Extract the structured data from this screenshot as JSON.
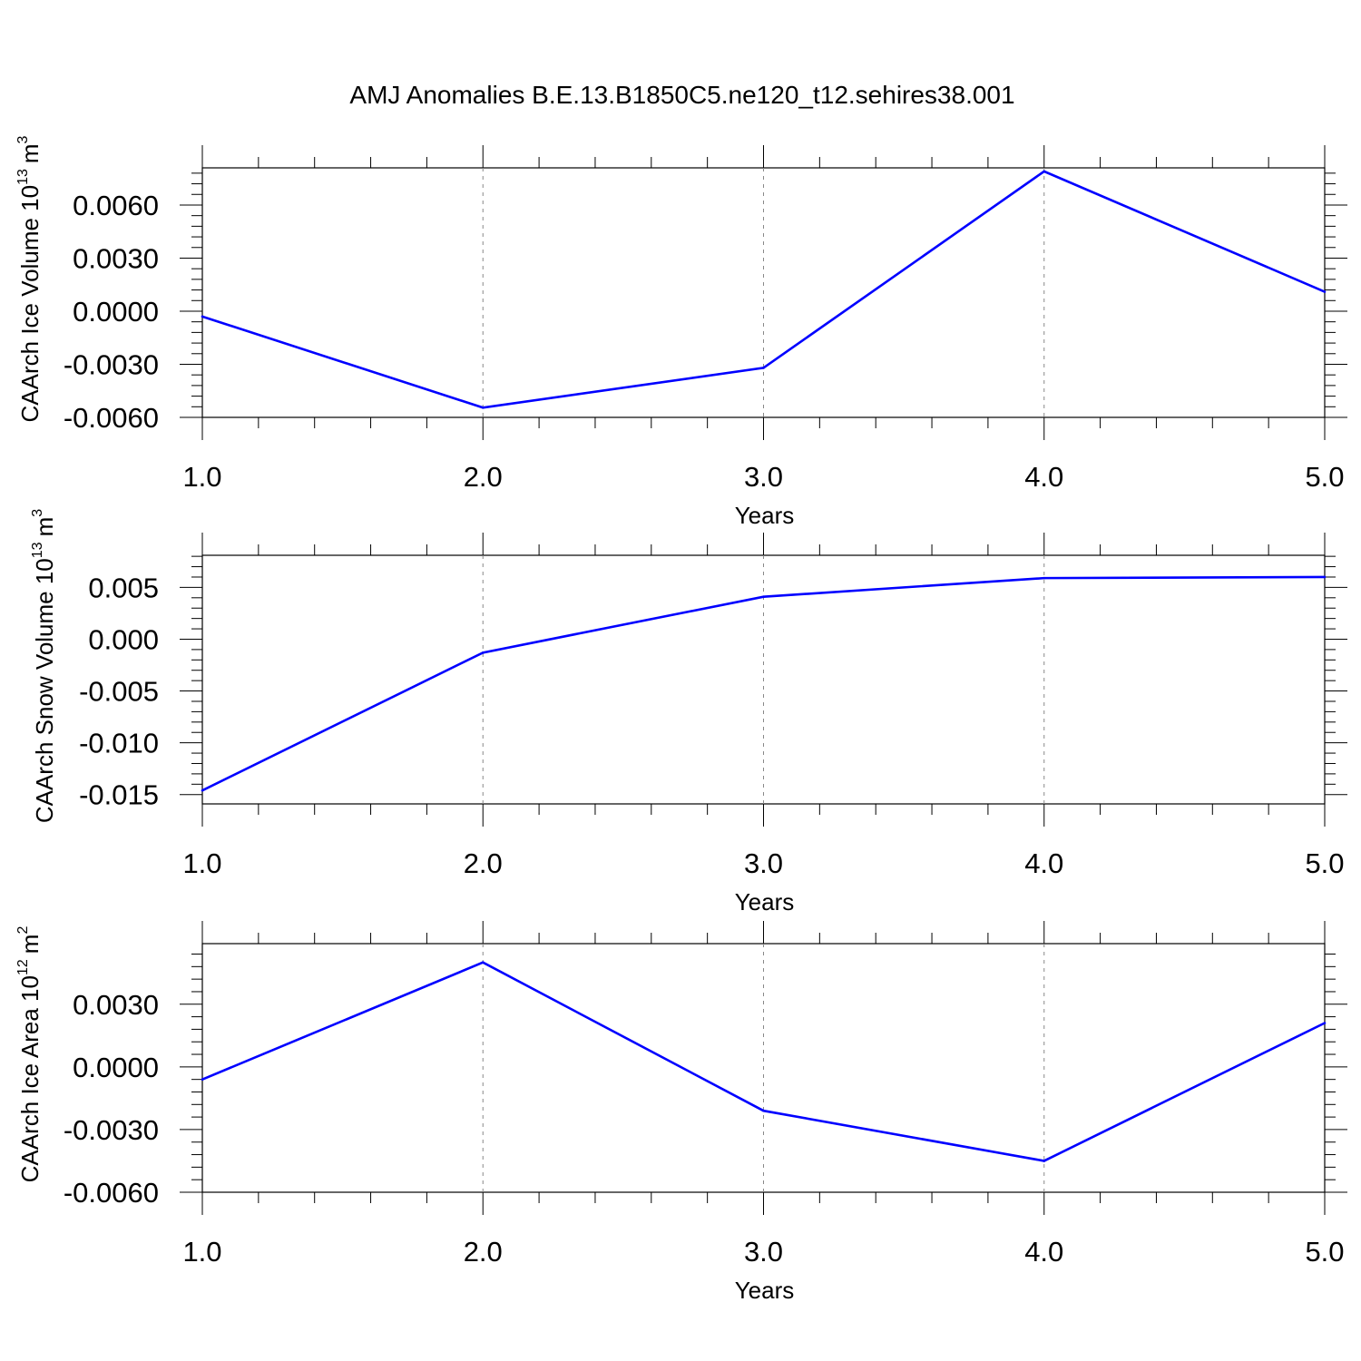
{
  "figure": {
    "title": "AMJ Anomalies B.E.13.B1850C5.ne120_t12.sehires38.001",
    "line_color": "#0000ff"
  },
  "chart_data": [
    {
      "type": "line",
      "title": "",
      "xlabel": "Years",
      "ylabel": "CAArch Ice Volume 10",
      "ylabel_exp": "13",
      "ylabel_unit": "m",
      "ylabel_unit_exp": "3",
      "x": [
        1.0,
        2.0,
        3.0,
        4.0,
        5.0
      ],
      "xlim": [
        1.0,
        5.0
      ],
      "xticks": [
        1.0,
        2.0,
        3.0,
        4.0,
        5.0
      ],
      "xtick_labels": [
        "1.0",
        "2.0",
        "3.0",
        "4.0",
        "5.0"
      ],
      "ylim": [
        -0.006,
        0.0081
      ],
      "yticks": [
        -0.006,
        -0.003,
        0.0,
        0.003,
        0.006
      ],
      "ytick_labels": [
        "-0.0060",
        "-0.0030",
        "0.0000",
        "0.0030",
        "0.0060"
      ],
      "y_minor_step": 0.0006,
      "series": [
        {
          "values": [
            -0.0003,
            -0.00545,
            -0.0032,
            0.0079,
            0.0011
          ]
        }
      ],
      "grid": "vertical dashed"
    },
    {
      "type": "line",
      "title": "",
      "xlabel": "Years",
      "ylabel": "CAArch Snow Volume 10",
      "ylabel_exp": "13",
      "ylabel_unit": "m",
      "ylabel_unit_exp": "3",
      "x": [
        1.0,
        2.0,
        3.0,
        4.0,
        5.0
      ],
      "xlim": [
        1.0,
        5.0
      ],
      "xticks": [
        1.0,
        2.0,
        3.0,
        4.0,
        5.0
      ],
      "xtick_labels": [
        "1.0",
        "2.0",
        "3.0",
        "4.0",
        "5.0"
      ],
      "ylim": [
        -0.0159,
        0.0081
      ],
      "yticks": [
        -0.015,
        -0.01,
        -0.005,
        0.0,
        0.005
      ],
      "ytick_labels": [
        "-0.015",
        "-0.010",
        "-0.005",
        "0.000",
        "0.005"
      ],
      "y_minor_step": 0.001,
      "series": [
        {
          "values": [
            -0.0146,
            -0.0013,
            0.0041,
            0.0059,
            0.006
          ]
        }
      ],
      "grid": "vertical dashed"
    },
    {
      "type": "line",
      "title": "",
      "xlabel": "Years",
      "ylabel": "CAArch Ice Area 10",
      "ylabel_exp": "12",
      "ylabel_unit": "m",
      "ylabel_unit_exp": "2",
      "x": [
        1.0,
        2.0,
        3.0,
        4.0,
        5.0
      ],
      "xlim": [
        1.0,
        5.0
      ],
      "xticks": [
        1.0,
        2.0,
        3.0,
        4.0,
        5.0
      ],
      "xtick_labels": [
        "1.0",
        "2.0",
        "3.0",
        "4.0",
        "5.0"
      ],
      "ylim": [
        -0.006,
        0.0059
      ],
      "yticks": [
        -0.006,
        -0.003,
        0.0,
        0.003
      ],
      "ytick_labels": [
        "-0.0060",
        "-0.0030",
        "0.0000",
        "0.0030"
      ],
      "y_minor_step": 0.0006,
      "series": [
        {
          "values": [
            -0.0006,
            0.005,
            -0.0021,
            -0.0045,
            0.0021
          ]
        }
      ],
      "grid": "vertical dashed"
    }
  ]
}
